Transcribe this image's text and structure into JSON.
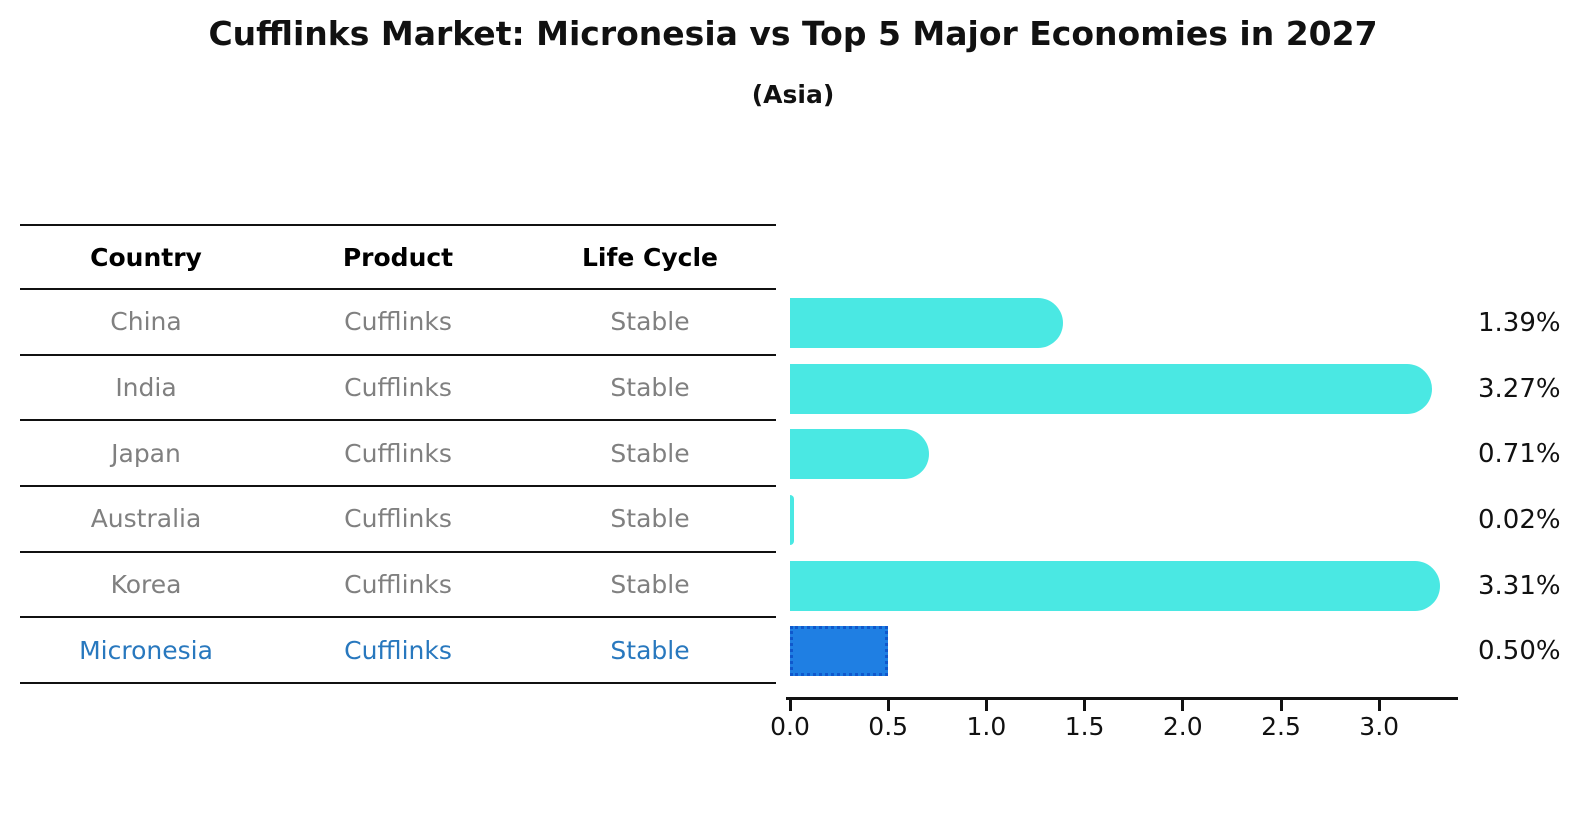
{
  "header": {
    "title": "Cufflinks Market: Micronesia vs Top 5 Major Economies in 2027",
    "subtitle": "(Asia)"
  },
  "table": {
    "columns": [
      "Country",
      "Product",
      "Life Cycle"
    ],
    "rows": [
      {
        "country": "China",
        "product": "Cufflinks",
        "life_cycle": "Stable",
        "highlight": false
      },
      {
        "country": "India",
        "product": "Cufflinks",
        "life_cycle": "Stable",
        "highlight": false
      },
      {
        "country": "Japan",
        "product": "Cufflinks",
        "life_cycle": "Stable",
        "highlight": false
      },
      {
        "country": "Australia",
        "product": "Cufflinks",
        "life_cycle": "Stable",
        "highlight": false
      },
      {
        "country": "Korea",
        "product": "Cufflinks",
        "life_cycle": "Stable",
        "highlight": false
      },
      {
        "country": "Micronesia",
        "product": "Cufflinks",
        "life_cycle": "Stable",
        "highlight": true
      }
    ]
  },
  "chart_data": {
    "type": "bar",
    "orientation": "horizontal",
    "title": "Cufflinks Market: Micronesia vs Top 5 Major Economies in 2027",
    "subtitle": "(Asia)",
    "categories": [
      "China",
      "India",
      "Japan",
      "Australia",
      "Korea",
      "Micronesia"
    ],
    "values": [
      1.39,
      3.27,
      0.71,
      0.02,
      3.31,
      0.5
    ],
    "value_labels": [
      "1.39%",
      "3.27%",
      "0.71%",
      "0.02%",
      "3.31%",
      "0.50%"
    ],
    "x_ticks": [
      "0.0",
      "0.5",
      "1.0",
      "1.5",
      "2.0",
      "2.5",
      "3.0"
    ],
    "xlim": [
      0,
      3.42
    ],
    "xlabel": "",
    "ylabel": "",
    "grid": false,
    "legend": false,
    "bar_color": "#4AE8E3",
    "highlight_color": "#1F7FE3",
    "highlight_index": 5
  },
  "colors": {
    "text_primary": "#111111",
    "text_muted": "#808080",
    "highlight_text": "#2878BE",
    "highlight_border": "#1058CC",
    "table_line": "#111111",
    "axis_line": "#111111"
  }
}
